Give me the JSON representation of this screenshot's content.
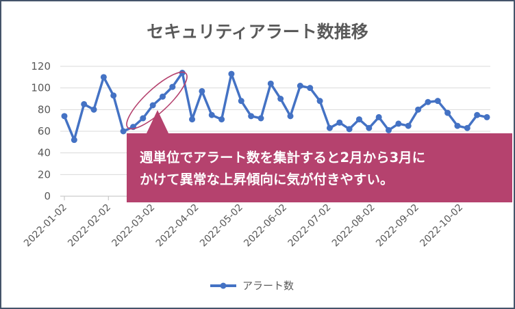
{
  "chart_data": {
    "type": "line",
    "title": "セキュリティアラート数推移",
    "xlabel": "",
    "ylabel": "",
    "ylim": [
      0,
      120
    ],
    "yticks": [
      0,
      20,
      40,
      60,
      80,
      100,
      120
    ],
    "grid": "horizontal",
    "x_tick_labels": [
      "2022-01-02",
      "2022-02-02",
      "2022-03-02",
      "2022-04-02",
      "2022-05-02",
      "2022-06-02",
      "2022-07-02",
      "2022-08-02",
      "2022-09-02",
      "2022-10-02"
    ],
    "legend_position": "bottom",
    "series": [
      {
        "name": "アラート数",
        "color": "#4472c4",
        "values": [
          74,
          52,
          85,
          80,
          110,
          93,
          60,
          64,
          72,
          84,
          92,
          101,
          114,
          71,
          97,
          75,
          71,
          113,
          88,
          74,
          72,
          104,
          90,
          74,
          102,
          100,
          88,
          63,
          68,
          62,
          71,
          63,
          73,
          61,
          67,
          65,
          80,
          87,
          88,
          77,
          65,
          63,
          75,
          73
        ]
      }
    ],
    "annotations": [
      {
        "type": "callout",
        "text_lines": [
          "週単位でアラート数を集計すると2月から3月に",
          "かけて異常な上昇傾向に気が付きやすい。"
        ],
        "background": "#b5426e"
      },
      {
        "type": "highlight-ellipse",
        "color": "#b5426e"
      }
    ]
  }
}
